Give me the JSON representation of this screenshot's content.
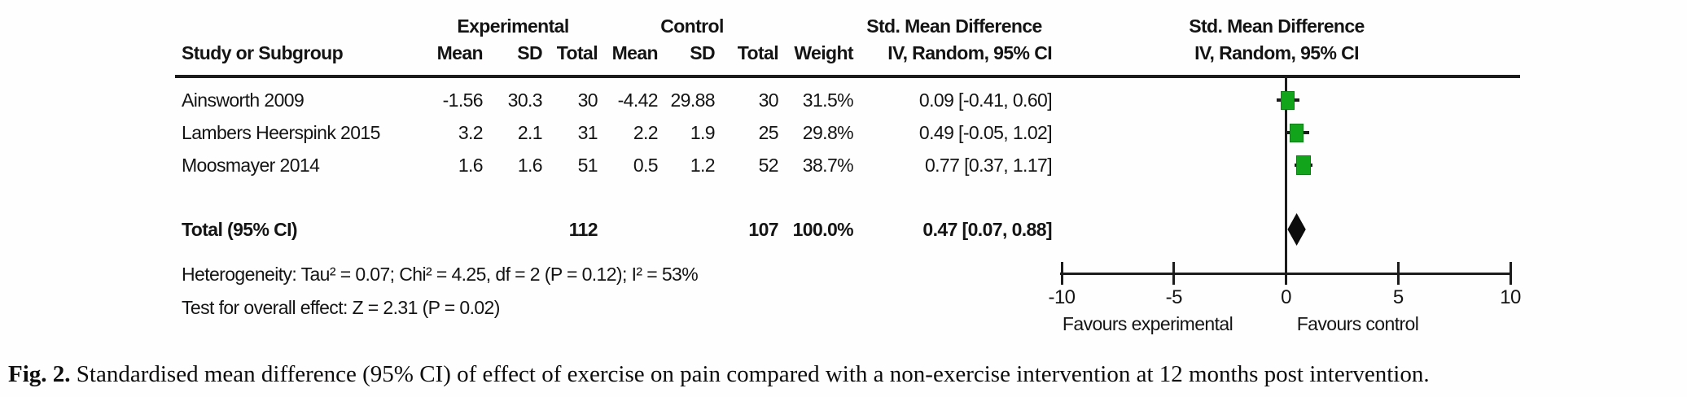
{
  "table": {
    "group_headers": {
      "experimental": "Experimental",
      "control": "Control",
      "smd_left": "Std. Mean Difference",
      "smd_right": "Std. Mean Difference"
    },
    "col_headers": {
      "study": "Study or Subgroup",
      "mean1": "Mean",
      "sd1": "SD",
      "total1": "Total",
      "mean2": "Mean",
      "sd2": "SD",
      "total2": "Total",
      "weight": "Weight",
      "ci_left": "IV, Random, 95% CI",
      "ci_right": "IV, Random, 95% CI"
    },
    "rows": [
      {
        "study": "Ainsworth 2009",
        "exp_mean": "-1.56",
        "exp_sd": "30.3",
        "exp_total": "30",
        "ctl_mean": "-4.42",
        "ctl_sd": "29.88",
        "ctl_total": "30",
        "weight": "31.5%",
        "ci": "0.09 [-0.41, 0.60]"
      },
      {
        "study": "Lambers Heerspink 2015",
        "exp_mean": "3.2",
        "exp_sd": "2.1",
        "exp_total": "31",
        "ctl_mean": "2.2",
        "ctl_sd": "1.9",
        "ctl_total": "25",
        "weight": "29.8%",
        "ci": "0.49 [-0.05, 1.02]"
      },
      {
        "study": "Moosmayer 2014",
        "exp_mean": "1.6",
        "exp_sd": "1.6",
        "exp_total": "51",
        "ctl_mean": "0.5",
        "ctl_sd": "1.2",
        "ctl_total": "52",
        "weight": "38.7%",
        "ci": "0.77 [0.37, 1.17]"
      }
    ],
    "total": {
      "label": "Total (95% CI)",
      "exp_total": "112",
      "ctl_total": "107",
      "weight": "100.0%",
      "ci": "0.47 [0.07, 0.88]"
    },
    "heterogeneity": "Heterogeneity: Tau² = 0.07; Chi² = 4.25, df = 2 (P = 0.12); I² = 53%",
    "overall_effect": "Test for overall effect: Z = 2.31 (P = 0.02)"
  },
  "caption": {
    "label": "Fig. 2.",
    "text": "Standardised mean difference (95% CI) of effect of exercise on pain compared with a non-exercise intervention at 12 months post intervention."
  },
  "chart_data": {
    "type": "forest",
    "effect_measure": "Std. Mean Difference, IV, Random, 95% CI",
    "xlim": [
      -10,
      10
    ],
    "x_ticks": [
      -10,
      -5,
      0,
      5,
      10
    ],
    "axis_labels": {
      "left": "Favours experimental",
      "right": "Favours control"
    },
    "marker_color": "#12a41b",
    "studies": [
      {
        "study": "Ainsworth 2009",
        "exp_mean": -1.56,
        "exp_sd": 30.3,
        "exp_total": 30,
        "ctl_mean": -4.42,
        "ctl_sd": 29.88,
        "ctl_total": 30,
        "weight_pct": 31.5,
        "smd": 0.09,
        "ci_low": -0.41,
        "ci_high": 0.6
      },
      {
        "study": "Lambers Heerspink 2015",
        "exp_mean": 3.2,
        "exp_sd": 2.1,
        "exp_total": 31,
        "ctl_mean": 2.2,
        "ctl_sd": 1.9,
        "ctl_total": 25,
        "weight_pct": 29.8,
        "smd": 0.49,
        "ci_low": -0.05,
        "ci_high": 1.02
      },
      {
        "study": "Moosmayer 2014",
        "exp_mean": 1.6,
        "exp_sd": 1.6,
        "exp_total": 51,
        "ctl_mean": 0.5,
        "ctl_sd": 1.2,
        "ctl_total": 52,
        "weight_pct": 38.7,
        "smd": 0.77,
        "ci_low": 0.37,
        "ci_high": 1.17
      }
    ],
    "total": {
      "label": "Total (95% CI)",
      "exp_total": 112,
      "ctl_total": 107,
      "weight_pct": 100.0,
      "smd": 0.47,
      "ci_low": 0.07,
      "ci_high": 0.88
    },
    "heterogeneity": "Tau² = 0.07; Chi² = 4.25, df = 2 (P = 0.12); I² = 53%",
    "overall_effect": "Z = 2.31 (P = 0.02)"
  }
}
